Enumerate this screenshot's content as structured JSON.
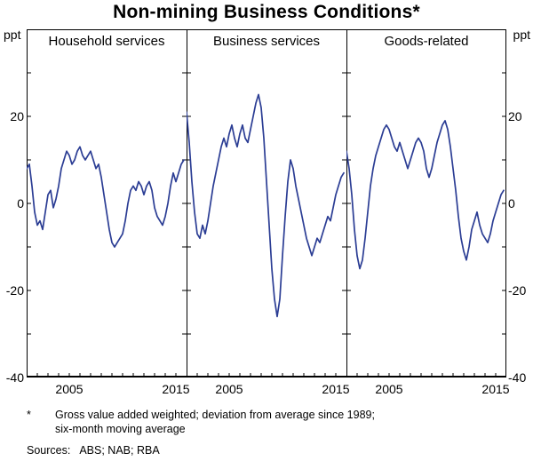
{
  "colors": {
    "line": "#2b3d94",
    "frame": "#000000",
    "background": "#ffffff"
  },
  "chart_data": {
    "type": "line",
    "title": "Non-mining Business Conditions*",
    "unit_left": "ppt",
    "unit_right": "ppt",
    "ylim": [
      -40,
      40
    ],
    "ytick_step": 10,
    "yticks_labeled": [
      20,
      0,
      -20,
      -40
    ],
    "xlim": [
      2001,
      2016
    ],
    "xticks_labeled": [
      2005,
      2015
    ],
    "legend_position": "none",
    "grid": false,
    "panels": [
      {
        "title": "Household services",
        "x_start": 2001.0,
        "x_step": 0.25,
        "y": [
          8,
          9,
          4,
          -2,
          -5,
          -4,
          -6,
          -2,
          2,
          3,
          -1,
          1,
          4,
          8,
          10,
          12,
          11,
          9,
          10,
          12,
          13,
          11,
          10,
          11,
          12,
          10,
          8,
          9,
          6,
          2,
          -2,
          -6,
          -9,
          -10,
          -9,
          -8,
          -7,
          -4,
          0,
          3,
          4,
          3,
          5,
          4,
          2,
          4,
          5,
          3,
          -1,
          -3,
          -4,
          -5,
          -3,
          0,
          4,
          7,
          5,
          7,
          9,
          10
        ]
      },
      {
        "title": "Business services",
        "x_start": 2001.0,
        "x_step": 0.25,
        "y": [
          21,
          14,
          5,
          -2,
          -7,
          -8,
          -5,
          -7,
          -4,
          0,
          4,
          7,
          10,
          13,
          15,
          13,
          16,
          18,
          15,
          13,
          16,
          18,
          15,
          14,
          17,
          20,
          23,
          25,
          22,
          15,
          5,
          -5,
          -15,
          -22,
          -26,
          -22,
          -12,
          -3,
          5,
          10,
          8,
          4,
          1,
          -2,
          -5,
          -8,
          -10,
          -12,
          -10,
          -8,
          -9,
          -7,
          -5,
          -3,
          -4,
          -1,
          2,
          4,
          6,
          7
        ]
      },
      {
        "title": "Goods-related",
        "x_start": 2001.0,
        "x_step": 0.25,
        "y": [
          12,
          8,
          2,
          -6,
          -12,
          -15,
          -13,
          -8,
          -2,
          4,
          8,
          11,
          13,
          15,
          17,
          18,
          17,
          15,
          13,
          12,
          14,
          12,
          10,
          8,
          10,
          12,
          14,
          15,
          14,
          12,
          8,
          6,
          8,
          11,
          14,
          16,
          18,
          19,
          17,
          13,
          8,
          3,
          -3,
          -8,
          -11,
          -13,
          -10,
          -6,
          -4,
          -2,
          -5,
          -7,
          -8,
          -9,
          -7,
          -4,
          -2,
          0,
          2,
          3
        ]
      }
    ]
  },
  "footnote": {
    "marker": "*",
    "line1": "Gross value added weighted; deviation from average since 1989;",
    "line2": "six-month moving average"
  },
  "sources": {
    "label": "Sources:",
    "text": "ABS; NAB; RBA"
  }
}
